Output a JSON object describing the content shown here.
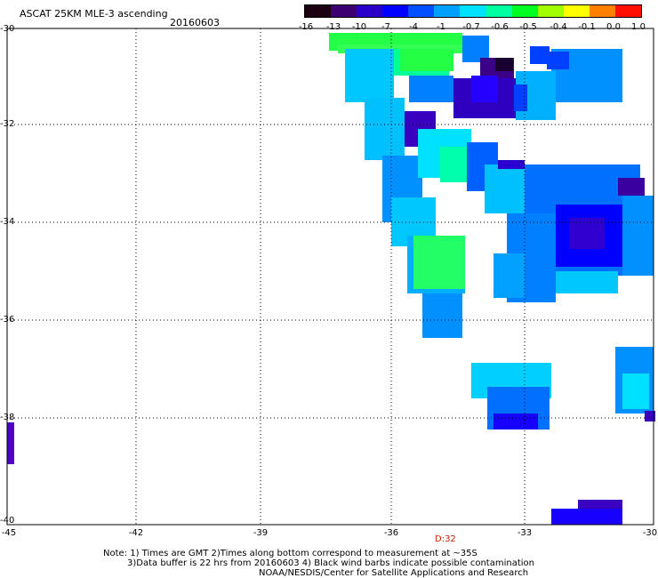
{
  "header": {
    "title": "ASCAT 25KM MLE-3 ascending",
    "date": "20160603"
  },
  "colorbar": {
    "labels": [
      "-16",
      "-13",
      "-10",
      "-7",
      "-4",
      "-1",
      "-0.7",
      "-0.6",
      "-0.5",
      "-0.4",
      "-0.1",
      "0.0",
      "1.0"
    ],
    "colors": [
      "#1a0010",
      "#3c0070",
      "#2a00c8",
      "#0000ff",
      "#0050ff",
      "#00a0ff",
      "#00e0ff",
      "#00ffa0",
      "#00ff20",
      "#a0ff00",
      "#ffff00",
      "#ff8000",
      "#ff1000"
    ]
  },
  "axes": {
    "lat_labels": [
      "-30",
      "-32",
      "-34",
      "-36",
      "-38",
      "-40"
    ],
    "lon_labels": [
      "-45",
      "-42",
      "-39",
      "-36",
      "-33",
      "-30"
    ]
  },
  "timestamp": "D:32",
  "notes": {
    "line1": "Note: 1) Times are GMT 2)Times along bottom correspond to measurement at ~35S",
    "line2": "3)Data buffer is 22 hrs from 20160603 4) Black wind barbs indicate possible contamination",
    "credit": "NOAA/NESDIS/Center for Satellite Applications and Research"
  }
}
